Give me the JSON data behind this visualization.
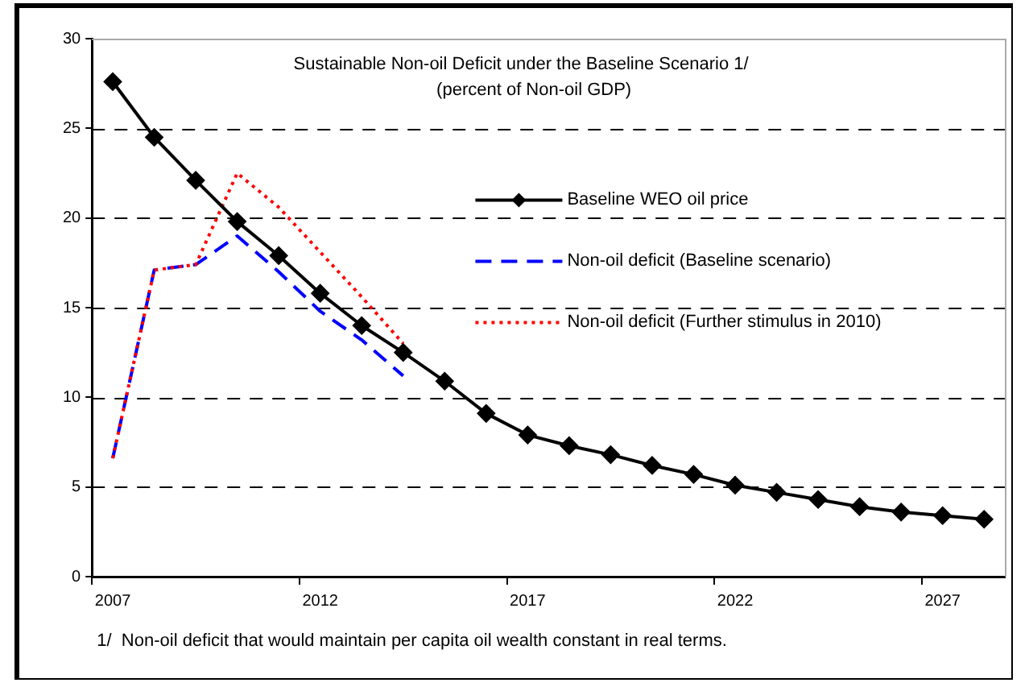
{
  "chart_data": {
    "type": "line",
    "title": "Sustainable Non-oil Deficit under the Baseline Scenario 1/",
    "subtitle": "(percent of Non-oil GDP)",
    "categories": [
      "2007",
      null,
      null,
      null,
      null,
      "2012",
      null,
      null,
      null,
      null,
      "2017",
      null,
      null,
      null,
      null,
      "2022",
      null,
      null,
      null,
      null,
      "2027",
      null
    ],
    "series": [
      {
        "name": "Baseline WEO oil price",
        "color": "#000000",
        "marker": "diamond",
        "line_style": "solid",
        "values": [
          27.6,
          24.5,
          22.1,
          19.8,
          17.9,
          15.8,
          14.0,
          12.5,
          10.9,
          9.1,
          7.9,
          7.3,
          6.8,
          6.2,
          5.7,
          5.1,
          4.7,
          4.3,
          3.9,
          3.6,
          3.4,
          3.2
        ]
      },
      {
        "name": "Non-oil deficit (Baseline scenario)",
        "color": "#0000ff",
        "marker": "none",
        "line_style": "dashed",
        "values": [
          6.6,
          17.1,
          17.4,
          19.0,
          17.0,
          14.8,
          13.2,
          11.2,
          null,
          null,
          null,
          null,
          null,
          null,
          null,
          null,
          null,
          null,
          null,
          null,
          null,
          null
        ]
      },
      {
        "name": "Non-oil deficit (Further stimulus in 2010)",
        "color": "#ff0000",
        "marker": "none",
        "line_style": "dotted",
        "values": [
          6.6,
          17.1,
          17.4,
          22.5,
          20.6,
          18.1,
          15.6,
          13.0,
          null,
          null,
          null,
          null,
          null,
          null,
          null,
          null,
          null,
          null,
          null,
          null,
          null,
          null
        ]
      }
    ],
    "ylim": [
      0,
      30
    ],
    "yticks": [
      0,
      5,
      10,
      15,
      20,
      25,
      30
    ],
    "grid": "y",
    "legend": "right",
    "annotations": [
      "1/  Non-oil deficit that would maintain per capita oil wealth constant in real terms."
    ]
  }
}
